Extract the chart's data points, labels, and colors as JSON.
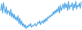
{
  "line_color": "#4da6e8",
  "background_color": "#ffffff",
  "linewidth": 0.9,
  "values": [
    3.0,
    5.5,
    2.0,
    6.0,
    3.5,
    2.0,
    4.5,
    1.5,
    3.0,
    2.5,
    1.0,
    3.5,
    0.5,
    2.0,
    0.0,
    1.5,
    -0.5,
    0.5,
    -1.0,
    1.0,
    -2.0,
    0.0,
    -2.5,
    -1.0,
    -3.0,
    -2.0,
    -3.5,
    -2.5,
    -4.0,
    -3.0,
    -3.5,
    -2.5,
    -3.0,
    -2.0,
    -3.5,
    -2.8,
    -3.0,
    -2.5,
    -2.0,
    -3.0,
    -2.5,
    -1.5,
    -2.0,
    -1.0,
    -2.5,
    -1.5,
    -1.0,
    -2.0,
    -0.5,
    -1.5,
    0.0,
    -1.0,
    0.5,
    0.0,
    1.0,
    0.5,
    1.5,
    1.0,
    2.5,
    1.5,
    3.0,
    2.0,
    3.5,
    2.5,
    4.5,
    2.0,
    5.0,
    3.0,
    4.0,
    5.5,
    3.5,
    6.0,
    4.0,
    5.5,
    3.0,
    6.5,
    3.5,
    5.0,
    4.5,
    6.0,
    3.0,
    5.5,
    4.0,
    6.5,
    3.5,
    5.0,
    4.5,
    5.8,
    3.8,
    6.2
  ]
}
